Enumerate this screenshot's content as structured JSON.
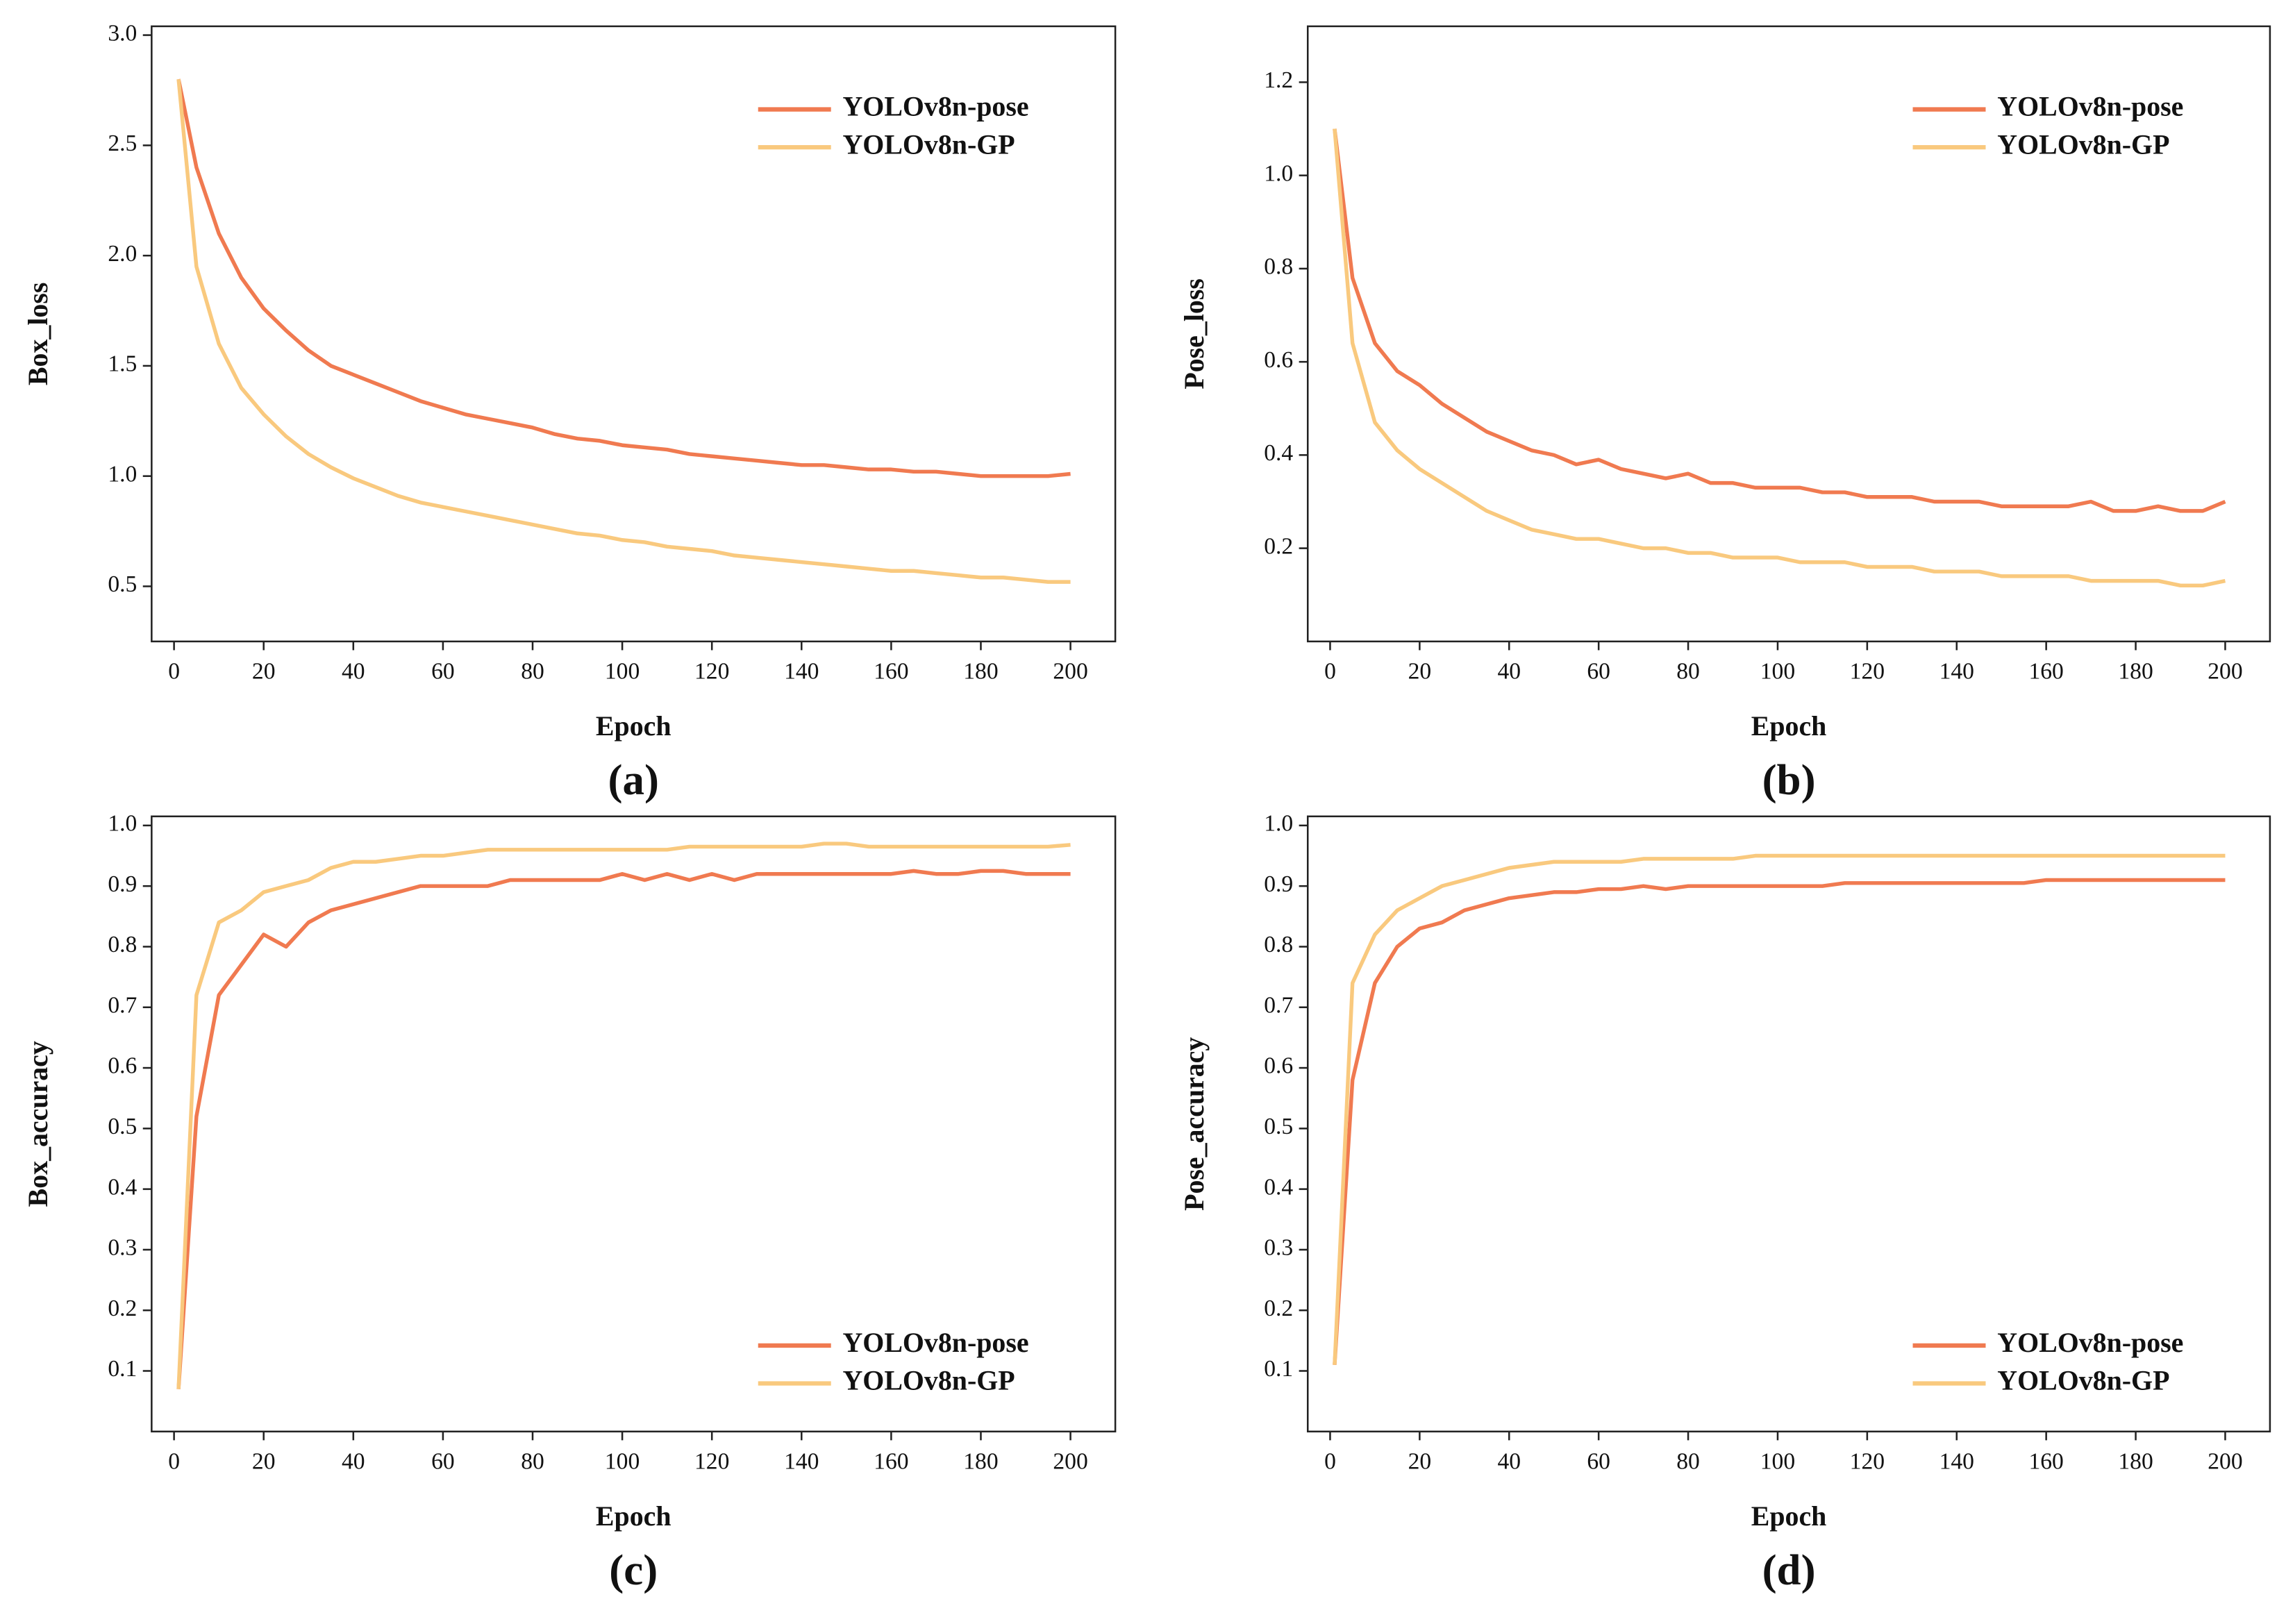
{
  "chart_data": [
    {
      "type": "line",
      "caption": "(a)",
      "xlabel": "Epoch",
      "ylabel": "Box_loss",
      "legend": "upper right",
      "grid": false,
      "xlim": [
        -5,
        210
      ],
      "xticks": [
        0,
        20,
        40,
        60,
        80,
        100,
        120,
        140,
        160,
        180,
        200
      ],
      "ylim": [
        0.25,
        3.04
      ],
      "yticks": [
        0.5,
        {
          "value": 1,
          "label": "1.0"
        },
        1.5,
        {
          "value": 2,
          "label": "2.0"
        },
        2.5,
        {
          "value": 3,
          "label": "3.0"
        }
      ],
      "x": [
        1,
        5,
        10,
        15,
        20,
        25,
        30,
        35,
        40,
        45,
        50,
        55,
        60,
        65,
        70,
        75,
        80,
        85,
        90,
        95,
        100,
        105,
        110,
        115,
        120,
        125,
        130,
        135,
        140,
        145,
        150,
        155,
        160,
        165,
        170,
        175,
        180,
        185,
        190,
        195,
        200
      ],
      "series": [
        {
          "name": "YOLOv8n-pose",
          "color": "#f07a50",
          "values": [
            2.8,
            2.4,
            2.1,
            1.9,
            1.76,
            1.66,
            1.57,
            1.5,
            1.46,
            1.42,
            1.38,
            1.34,
            1.31,
            1.28,
            1.26,
            1.24,
            1.22,
            1.19,
            1.17,
            1.16,
            1.14,
            1.13,
            1.12,
            1.1,
            1.09,
            1.08,
            1.07,
            1.06,
            1.05,
            1.05,
            1.04,
            1.03,
            1.03,
            1.02,
            1.02,
            1.01,
            1.0,
            1.0,
            1.0,
            1.0,
            1.01
          ]
        },
        {
          "name": "YOLOv8n-GP",
          "color": "#f9c97e",
          "values": [
            2.8,
            1.95,
            1.6,
            1.4,
            1.28,
            1.18,
            1.1,
            1.04,
            0.99,
            0.95,
            0.91,
            0.88,
            0.86,
            0.84,
            0.82,
            0.8,
            0.78,
            0.76,
            0.74,
            0.73,
            0.71,
            0.7,
            0.68,
            0.67,
            0.66,
            0.64,
            0.63,
            0.62,
            0.61,
            0.6,
            0.59,
            0.58,
            0.57,
            0.57,
            0.56,
            0.55,
            0.54,
            0.54,
            0.53,
            0.52,
            0.52
          ]
        }
      ]
    },
    {
      "type": "line",
      "caption": "(b)",
      "xlabel": "Epoch",
      "ylabel": "Pose_loss",
      "legend": "upper right",
      "grid": false,
      "xlim": [
        -5,
        210
      ],
      "xticks": [
        0,
        20,
        40,
        60,
        80,
        100,
        120,
        140,
        160,
        180,
        200
      ],
      "ylim": [
        0,
        1.32
      ],
      "yticks": [
        0.2,
        0.4,
        0.6,
        0.8,
        {
          "value": 1,
          "label": "1.0"
        },
        1.2
      ],
      "x": [
        1,
        5,
        10,
        15,
        20,
        25,
        30,
        35,
        40,
        45,
        50,
        55,
        60,
        65,
        70,
        75,
        80,
        85,
        90,
        95,
        100,
        105,
        110,
        115,
        120,
        125,
        130,
        135,
        140,
        145,
        150,
        155,
        160,
        165,
        170,
        175,
        180,
        185,
        190,
        195,
        200
      ],
      "series": [
        {
          "name": "YOLOv8n-pose",
          "color": "#f07a50",
          "values": [
            1.1,
            0.78,
            0.64,
            0.58,
            0.55,
            0.51,
            0.48,
            0.45,
            0.43,
            0.41,
            0.4,
            0.38,
            0.39,
            0.37,
            0.36,
            0.35,
            0.36,
            0.34,
            0.34,
            0.33,
            0.33,
            0.33,
            0.32,
            0.32,
            0.31,
            0.31,
            0.31,
            0.3,
            0.3,
            0.3,
            0.29,
            0.29,
            0.29,
            0.29,
            0.3,
            0.28,
            0.28,
            0.29,
            0.28,
            0.28,
            0.3
          ]
        },
        {
          "name": "YOLOv8n-GP",
          "color": "#f9c97e",
          "values": [
            1.1,
            0.64,
            0.47,
            0.41,
            0.37,
            0.34,
            0.31,
            0.28,
            0.26,
            0.24,
            0.23,
            0.22,
            0.22,
            0.21,
            0.2,
            0.2,
            0.19,
            0.19,
            0.18,
            0.18,
            0.18,
            0.17,
            0.17,
            0.17,
            0.16,
            0.16,
            0.16,
            0.15,
            0.15,
            0.15,
            0.14,
            0.14,
            0.14,
            0.14,
            0.13,
            0.13,
            0.13,
            0.13,
            0.12,
            0.12,
            0.13
          ]
        }
      ]
    },
    {
      "type": "line",
      "caption": "(c)",
      "xlabel": "Epoch",
      "ylabel": "Box_accuracy",
      "legend": "lower right",
      "grid": false,
      "xlim": [
        -5,
        210
      ],
      "xticks": [
        0,
        20,
        40,
        60,
        80,
        100,
        120,
        140,
        160,
        180,
        200
      ],
      "ylim": [
        0,
        1.015
      ],
      "yticks": [
        0.1,
        0.2,
        0.3,
        0.4,
        0.5,
        0.6,
        0.7,
        0.8,
        0.9,
        {
          "value": 1,
          "label": "1.0"
        }
      ],
      "x": [
        1,
        5,
        10,
        15,
        20,
        25,
        30,
        35,
        40,
        45,
        50,
        55,
        60,
        65,
        70,
        75,
        80,
        85,
        90,
        95,
        100,
        105,
        110,
        115,
        120,
        125,
        130,
        135,
        140,
        145,
        150,
        155,
        160,
        165,
        170,
        175,
        180,
        185,
        190,
        195,
        200
      ],
      "series": [
        {
          "name": "YOLOv8n-pose",
          "color": "#f07a50",
          "values": [
            0.07,
            0.52,
            0.72,
            0.77,
            0.82,
            0.8,
            0.84,
            0.86,
            0.87,
            0.88,
            0.89,
            0.9,
            0.9,
            0.9,
            0.9,
            0.91,
            0.91,
            0.91,
            0.91,
            0.91,
            0.92,
            0.91,
            0.92,
            0.91,
            0.92,
            0.91,
            0.92,
            0.92,
            0.92,
            0.92,
            0.92,
            0.92,
            0.92,
            0.925,
            0.92,
            0.92,
            0.925,
            0.925,
            0.92,
            0.92,
            0.92
          ]
        },
        {
          "name": "YOLOv8n-GP",
          "color": "#f9c97e",
          "values": [
            0.07,
            0.72,
            0.84,
            0.86,
            0.89,
            0.9,
            0.91,
            0.93,
            0.94,
            0.94,
            0.945,
            0.95,
            0.95,
            0.955,
            0.96,
            0.96,
            0.96,
            0.96,
            0.96,
            0.96,
            0.96,
            0.96,
            0.96,
            0.965,
            0.965,
            0.965,
            0.965,
            0.965,
            0.965,
            0.97,
            0.97,
            0.965,
            0.965,
            0.965,
            0.965,
            0.965,
            0.965,
            0.965,
            0.965,
            0.965,
            0.968
          ]
        }
      ]
    },
    {
      "type": "line",
      "caption": "(d)",
      "xlabel": "Epoch",
      "ylabel": "Pose_accuracy",
      "legend": "lower right",
      "grid": false,
      "xlim": [
        -5,
        210
      ],
      "xticks": [
        0,
        20,
        40,
        60,
        80,
        100,
        120,
        140,
        160,
        180,
        200
      ],
      "ylim": [
        0,
        1.015
      ],
      "yticks": [
        0.1,
        0.2,
        0.3,
        0.4,
        0.5,
        0.6,
        0.7,
        0.8,
        0.9,
        {
          "value": 1,
          "label": "1.0"
        }
      ],
      "x": [
        1,
        5,
        10,
        15,
        20,
        25,
        30,
        35,
        40,
        45,
        50,
        55,
        60,
        65,
        70,
        75,
        80,
        85,
        90,
        95,
        100,
        105,
        110,
        115,
        120,
        125,
        130,
        135,
        140,
        145,
        150,
        155,
        160,
        165,
        170,
        175,
        180,
        185,
        190,
        195,
        200
      ],
      "series": [
        {
          "name": "YOLOv8n-pose",
          "color": "#f07a50",
          "values": [
            0.11,
            0.58,
            0.74,
            0.8,
            0.83,
            0.84,
            0.86,
            0.87,
            0.88,
            0.885,
            0.89,
            0.89,
            0.895,
            0.895,
            0.9,
            0.895,
            0.9,
            0.9,
            0.9,
            0.9,
            0.9,
            0.9,
            0.9,
            0.905,
            0.905,
            0.905,
            0.905,
            0.905,
            0.905,
            0.905,
            0.905,
            0.905,
            0.91,
            0.91,
            0.91,
            0.91,
            0.91,
            0.91,
            0.91,
            0.91,
            0.91
          ]
        },
        {
          "name": "YOLOv8n-GP",
          "color": "#f9c97e",
          "values": [
            0.11,
            0.74,
            0.82,
            0.86,
            0.88,
            0.9,
            0.91,
            0.92,
            0.93,
            0.935,
            0.94,
            0.94,
            0.94,
            0.94,
            0.945,
            0.945,
            0.945,
            0.945,
            0.945,
            0.95,
            0.95,
            0.95,
            0.95,
            0.95,
            0.95,
            0.95,
            0.95,
            0.95,
            0.95,
            0.95,
            0.95,
            0.95,
            0.95,
            0.95,
            0.95,
            0.95,
            0.95,
            0.95,
            0.95,
            0.95,
            0.95
          ]
        }
      ]
    }
  ]
}
